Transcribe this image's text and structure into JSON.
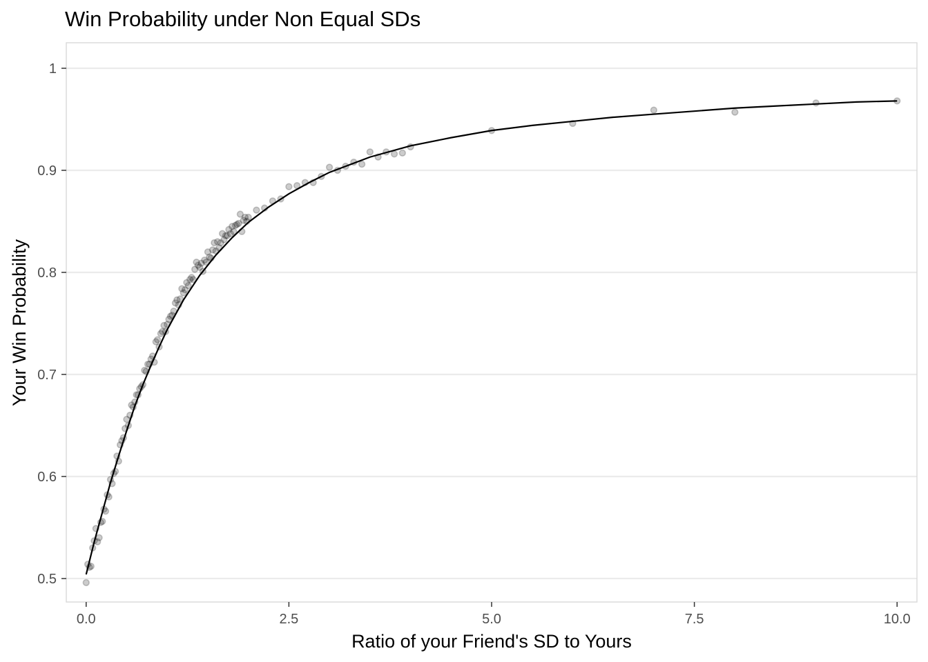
{
  "chart_data": {
    "type": "scatter",
    "title": "Win Probability under Non Equal SDs",
    "xlabel": "Ratio of your Friend's SD to Yours",
    "ylabel": "Your Win Probability",
    "xlim": [
      -0.245,
      10.245
    ],
    "ylim": [
      0.477,
      1.025
    ],
    "x_ticks": [
      0,
      2.5,
      5,
      7.5,
      10
    ],
    "x_tick_labels": [
      "0.0",
      "2.5",
      "5.0",
      "7.5",
      "10.0"
    ],
    "y_ticks": [
      0.5,
      0.6,
      0.7,
      0.8,
      0.9,
      1.0
    ],
    "y_tick_labels": [
      "0.5",
      "0.6",
      "0.7",
      "0.8",
      "0.9",
      "1"
    ],
    "grid": true,
    "legend": "none",
    "point_color": "#000000",
    "point_opacity": 0.2,
    "line_color": "#000000",
    "series": [
      {
        "kind": "points",
        "x": [
          0.0,
          0.02,
          0.04,
          0.06,
          0.08,
          0.1,
          0.12,
          0.14,
          0.16,
          0.18,
          0.2,
          0.22,
          0.24,
          0.26,
          0.28,
          0.3,
          0.32,
          0.34,
          0.36,
          0.38,
          0.4,
          0.42,
          0.44,
          0.46,
          0.48,
          0.5,
          0.52,
          0.54,
          0.56,
          0.58,
          0.6,
          0.62,
          0.64,
          0.66,
          0.68,
          0.7,
          0.72,
          0.74,
          0.76,
          0.78,
          0.8,
          0.82,
          0.84,
          0.86,
          0.88,
          0.9,
          0.92,
          0.94,
          0.96,
          0.98,
          1.0,
          1.02,
          1.04,
          1.06,
          1.08,
          1.1,
          1.12,
          1.14,
          1.16,
          1.18,
          1.2,
          1.22,
          1.24,
          1.26,
          1.28,
          1.3,
          1.32,
          1.34,
          1.36,
          1.38,
          1.4,
          1.42,
          1.44,
          1.46,
          1.48,
          1.5,
          1.52,
          1.54,
          1.56,
          1.58,
          1.6,
          1.62,
          1.64,
          1.66,
          1.68,
          1.7,
          1.72,
          1.74,
          1.76,
          1.78,
          1.8,
          1.82,
          1.84,
          1.86,
          1.88,
          1.9,
          1.92,
          1.94,
          1.96,
          1.98,
          2.0,
          2.1,
          2.2,
          2.3,
          2.4,
          2.5,
          2.6,
          2.7,
          2.8,
          2.9,
          3.0,
          3.1,
          3.2,
          3.3,
          3.4,
          3.5,
          3.6,
          3.7,
          3.8,
          3.9,
          4.0,
          5.0,
          6.0,
          7.0,
          8.0,
          9.0,
          10.0
        ],
        "y": [
          0.496,
          0.514,
          0.511,
          0.512,
          0.53,
          0.537,
          0.549,
          0.536,
          0.54,
          0.555,
          0.556,
          0.568,
          0.566,
          0.582,
          0.58,
          0.597,
          0.593,
          0.603,
          0.605,
          0.62,
          0.615,
          0.631,
          0.635,
          0.638,
          0.647,
          0.656,
          0.65,
          0.66,
          0.67,
          0.668,
          0.673,
          0.68,
          0.68,
          0.686,
          0.688,
          0.69,
          0.704,
          0.703,
          0.71,
          0.71,
          0.715,
          0.718,
          0.712,
          0.732,
          0.734,
          0.727,
          0.74,
          0.742,
          0.748,
          0.742,
          0.749,
          0.754,
          0.757,
          0.758,
          0.762,
          0.77,
          0.773,
          0.768,
          0.774,
          0.784,
          0.78,
          0.783,
          0.79,
          0.787,
          0.793,
          0.795,
          0.793,
          0.803,
          0.81,
          0.807,
          0.805,
          0.809,
          0.801,
          0.812,
          0.81,
          0.82,
          0.815,
          0.814,
          0.822,
          0.829,
          0.821,
          0.83,
          0.824,
          0.829,
          0.838,
          0.832,
          0.836,
          0.836,
          0.842,
          0.838,
          0.845,
          0.84,
          0.846,
          0.847,
          0.848,
          0.857,
          0.84,
          0.851,
          0.854,
          0.85,
          0.854,
          0.861,
          0.863,
          0.87,
          0.872,
          0.884,
          0.885,
          0.888,
          0.888,
          0.894,
          0.903,
          0.9,
          0.904,
          0.908,
          0.906,
          0.918,
          0.913,
          0.918,
          0.916,
          0.917,
          0.923,
          0.939,
          0.946,
          0.959,
          0.957,
          0.966,
          0.968
        ]
      },
      {
        "kind": "line",
        "x": [
          0.0,
          0.1,
          0.2,
          0.3,
          0.4,
          0.5,
          0.6,
          0.7,
          0.8,
          0.9,
          1.0,
          1.2,
          1.4,
          1.6,
          1.8,
          2.0,
          2.25,
          2.5,
          2.75,
          3.0,
          3.5,
          4.0,
          4.5,
          5.0,
          5.5,
          6.0,
          6.5,
          7.0,
          7.5,
          8.0,
          8.5,
          9.0,
          9.5,
          10.0
        ],
        "y": [
          0.504,
          0.536,
          0.565,
          0.594,
          0.62,
          0.645,
          0.669,
          0.69,
          0.709,
          0.727,
          0.744,
          0.773,
          0.797,
          0.817,
          0.834,
          0.849,
          0.864,
          0.877,
          0.888,
          0.898,
          0.913,
          0.924,
          0.932,
          0.939,
          0.944,
          0.948,
          0.952,
          0.955,
          0.958,
          0.961,
          0.963,
          0.965,
          0.967,
          0.968
        ]
      }
    ]
  }
}
